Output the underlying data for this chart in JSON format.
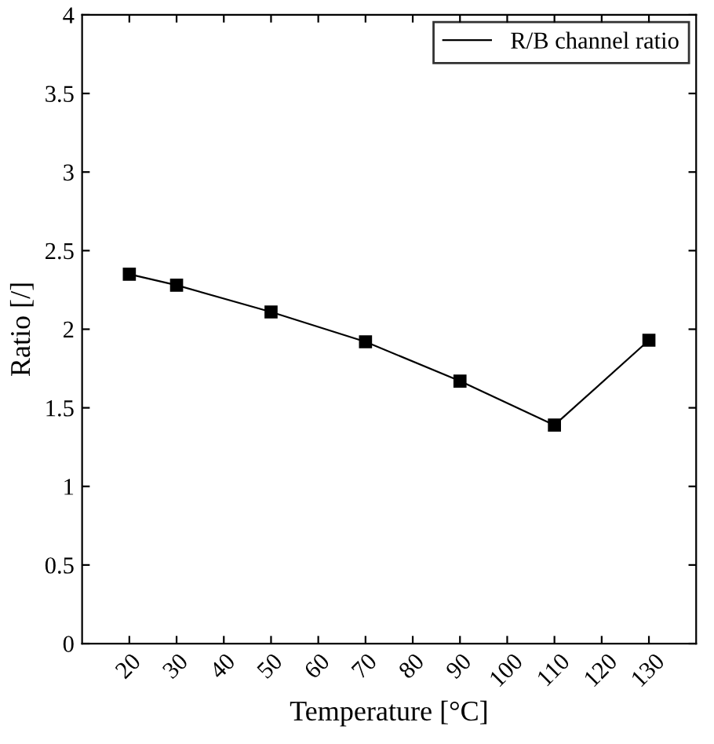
{
  "chart_data": {
    "type": "line",
    "xlabel": "Temperature [°C]",
    "ylabel": "Ratio [/]",
    "x": [
      20,
      30,
      50,
      70,
      90,
      110,
      130
    ],
    "series": [
      {
        "name": "R/B channel ratio",
        "color": "#000000",
        "values": [
          2.35,
          2.28,
          2.11,
          1.92,
          1.67,
          1.39,
          1.93
        ]
      }
    ],
    "xlim": [
      10,
      140
    ],
    "xticks": [
      20,
      30,
      40,
      50,
      60,
      70,
      80,
      90,
      100,
      110,
      120,
      130
    ],
    "ylim": [
      0,
      4
    ],
    "yticks": [
      0,
      0.5,
      1,
      1.5,
      2,
      2.5,
      3,
      3.5,
      4
    ],
    "marker": "square",
    "legend": "top right",
    "grid": false
  }
}
